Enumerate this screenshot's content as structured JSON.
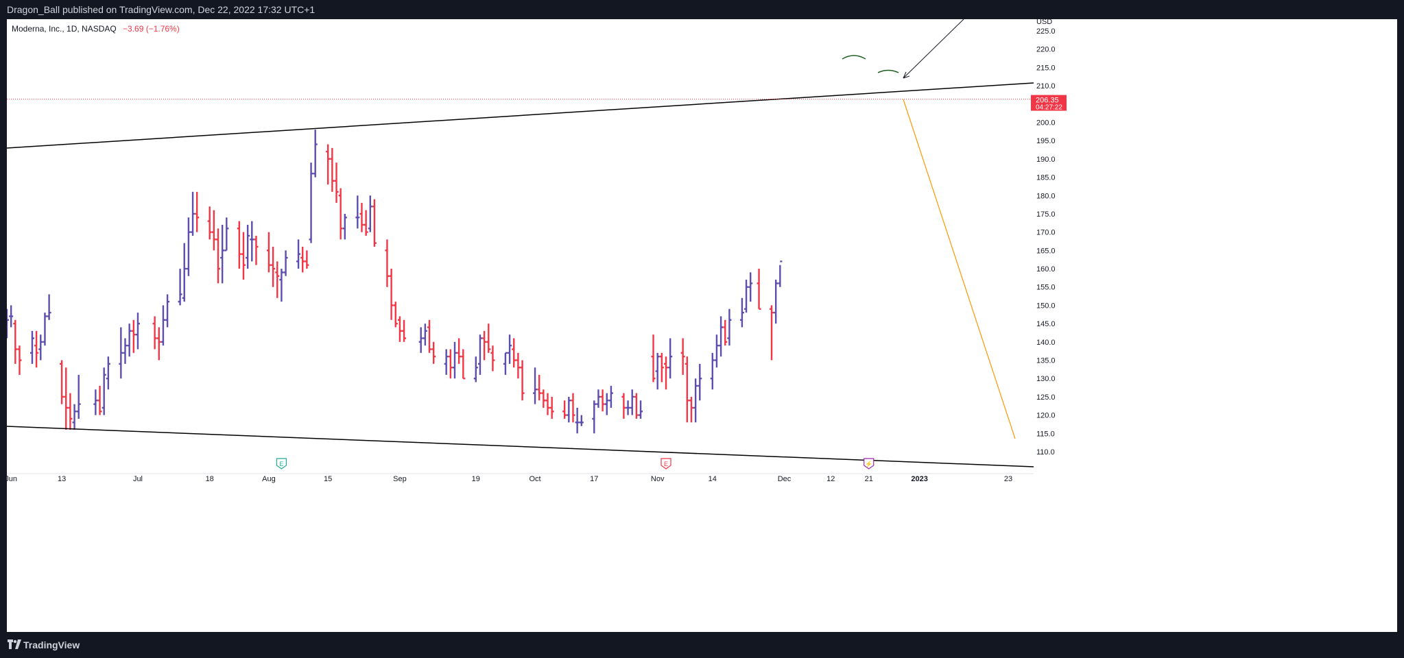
{
  "header": {
    "publish_line": "Dragon_Ball published on TradingView.com, Dec 22, 2022 17:32 UTC+1"
  },
  "legend": {
    "symbol": "Moderna, Inc., 1D, NASDAQ",
    "change": "−3.69 (−1.76%)"
  },
  "footer": {
    "brand": "TradingView"
  },
  "price_axis": {
    "currency": "USD",
    "current_price": "206.35",
    "countdown": "04:27:22"
  },
  "event_markers": [
    {
      "label": "E",
      "kind": "earnings",
      "color": "#22ab94",
      "x": "2022-08-04"
    },
    {
      "label": "E",
      "kind": "earnings",
      "color": "#f23645",
      "x": "2022-11-03"
    },
    {
      "label": "⚡",
      "kind": "dividend",
      "color": "#9c27b0",
      "x": "2022-12-21"
    }
  ],
  "colors": {
    "up": "#5c4db1",
    "down": "#f23645",
    "trendline": "#000000",
    "projection": "#ff9800",
    "price_label_bg": "#f23645"
  },
  "chart_data": {
    "type": "bar",
    "title": "Moderna, Inc., 1D, NASDAQ",
    "ylabel": "USD",
    "ylim": [
      106,
      227
    ],
    "y_ticks": [
      110,
      115,
      120,
      125,
      130,
      135,
      140,
      145,
      150,
      155,
      160,
      165,
      170,
      175,
      180,
      185,
      190,
      195,
      200,
      205,
      210,
      215,
      220,
      225
    ],
    "x_ticks": [
      {
        "label": "Jun",
        "date": "2022-06-01"
      },
      {
        "label": "13",
        "date": "2022-06-13"
      },
      {
        "label": "Jul",
        "date": "2022-07-01"
      },
      {
        "label": "18",
        "date": "2022-07-18"
      },
      {
        "label": "Aug",
        "date": "2022-08-01"
      },
      {
        "label": "15",
        "date": "2022-08-15"
      },
      {
        "label": "Sep",
        "date": "2022-09-01"
      },
      {
        "label": "19",
        "date": "2022-09-19"
      },
      {
        "label": "Oct",
        "date": "2022-10-03"
      },
      {
        "label": "17",
        "date": "2022-10-17"
      },
      {
        "label": "Nov",
        "date": "2022-11-01"
      },
      {
        "label": "14",
        "date": "2022-11-14"
      },
      {
        "label": "Dec",
        "date": "2022-12-01"
      },
      {
        "label": "12",
        "date": "2022-12-12"
      },
      {
        "label": "21",
        "date": "2022-12-21"
      },
      {
        "label": "2023",
        "date": "2023-01-02",
        "bold": true
      },
      {
        "label": "23",
        "date": "2023-01-23"
      }
    ],
    "series": [
      {
        "ohlc": [
          [
            "2022-05-31",
            144,
            149,
            141,
            146
          ],
          [
            "2022-06-01",
            147,
            150,
            144,
            147
          ],
          [
            "2022-06-02",
            145,
            146,
            134,
            138
          ],
          [
            "2022-06-03",
            138,
            139,
            131,
            135
          ],
          [
            "2022-06-06",
            137,
            143,
            134,
            141
          ],
          [
            "2022-06-07",
            139,
            143,
            133,
            137
          ],
          [
            "2022-06-08",
            138,
            142,
            135,
            140
          ],
          [
            "2022-06-09",
            140,
            148,
            139,
            147
          ],
          [
            "2022-06-10",
            147,
            153,
            146,
            148
          ],
          [
            "2022-06-13",
            134,
            135,
            123,
            125
          ],
          [
            "2022-06-14",
            125,
            133,
            116,
            122
          ],
          [
            "2022-06-15",
            122,
            126,
            116,
            119
          ],
          [
            "2022-06-16",
            118,
            123,
            116,
            121
          ],
          [
            "2022-06-17",
            121,
            131,
            119,
            123
          ],
          [
            "2022-06-21",
            123,
            127,
            120,
            124
          ],
          [
            "2022-06-22",
            124,
            128,
            120,
            121
          ],
          [
            "2022-06-23",
            122,
            133,
            120,
            131
          ],
          [
            "2022-06-24",
            130,
            136,
            127,
            134
          ],
          [
            "2022-06-27",
            134,
            144,
            130,
            137
          ],
          [
            "2022-06-28",
            137,
            141,
            134,
            139
          ],
          [
            "2022-06-29",
            139,
            145,
            136,
            143
          ],
          [
            "2022-06-30",
            143,
            146,
            137,
            142
          ],
          [
            "2022-07-01",
            142,
            148,
            138,
            145
          ],
          [
            "2022-07-05",
            145,
            147,
            138,
            141
          ],
          [
            "2022-07-06",
            141,
            144,
            135,
            140
          ],
          [
            "2022-07-07",
            140,
            150,
            139,
            146
          ],
          [
            "2022-07-08",
            146,
            153,
            144,
            151
          ],
          [
            "2022-07-11",
            151,
            160,
            150,
            153
          ],
          [
            "2022-07-12",
            152,
            167,
            151,
            160
          ],
          [
            "2022-07-13",
            160,
            174,
            158,
            170
          ],
          [
            "2022-07-14",
            170,
            181,
            169,
            175
          ],
          [
            "2022-07-15",
            175,
            181,
            170,
            174
          ],
          [
            "2022-07-18",
            173,
            177,
            168,
            170
          ],
          [
            "2022-07-19",
            170,
            176,
            165,
            168
          ],
          [
            "2022-07-20",
            168,
            171,
            156,
            160
          ],
          [
            "2022-07-21",
            163,
            172,
            156,
            165
          ],
          [
            "2022-07-22",
            165,
            174,
            165,
            171
          ],
          [
            "2022-07-25",
            171,
            173,
            160,
            164
          ],
          [
            "2022-07-26",
            164,
            170,
            157,
            161
          ],
          [
            "2022-07-27",
            163,
            172,
            160,
            169
          ],
          [
            "2022-07-28",
            168,
            173,
            162,
            168
          ],
          [
            "2022-07-29",
            168,
            169,
            161,
            166
          ],
          [
            "2022-08-01",
            165,
            170,
            159,
            161
          ],
          [
            "2022-08-02",
            161,
            166,
            155,
            160
          ],
          [
            "2022-08-03",
            159,
            162,
            152,
            158
          ],
          [
            "2022-08-04",
            157,
            160,
            151,
            159
          ],
          [
            "2022-08-05",
            159,
            165,
            158,
            163
          ],
          [
            "2022-08-08",
            162,
            168,
            160,
            164
          ],
          [
            "2022-08-09",
            163,
            166,
            159,
            162
          ],
          [
            "2022-08-10",
            162,
            165,
            160,
            161
          ],
          [
            "2022-08-11",
            168,
            189,
            167,
            186
          ],
          [
            "2022-08-12",
            186,
            198,
            185,
            194
          ],
          [
            "2022-08-15",
            192,
            194,
            183,
            190
          ],
          [
            "2022-08-16",
            190,
            193,
            181,
            184
          ],
          [
            "2022-08-17",
            184,
            189,
            178,
            181
          ],
          [
            "2022-08-18",
            180,
            182,
            168,
            171
          ],
          [
            "2022-08-19",
            171,
            175,
            168,
            174
          ],
          [
            "2022-08-22",
            174,
            180,
            171,
            174
          ],
          [
            "2022-08-23",
            175,
            178,
            170,
            172
          ],
          [
            "2022-08-24",
            172,
            176,
            169,
            170
          ],
          [
            "2022-08-25",
            171,
            180,
            170,
            177
          ],
          [
            "2022-08-26",
            177,
            179,
            166,
            167
          ],
          [
            "2022-08-29",
            165,
            168,
            155,
            158
          ],
          [
            "2022-08-30",
            158,
            160,
            146,
            150
          ],
          [
            "2022-08-31",
            150,
            151,
            144,
            145
          ],
          [
            "2022-09-01",
            146,
            147,
            140,
            143
          ],
          [
            "2022-09-02",
            143,
            146,
            140,
            141
          ],
          [
            "2022-09-06",
            140,
            144,
            137,
            141
          ],
          [
            "2022-09-07",
            141,
            145,
            139,
            143
          ],
          [
            "2022-09-08",
            144,
            146,
            137,
            138
          ],
          [
            "2022-09-09",
            138,
            140,
            134,
            136
          ],
          [
            "2022-09-12",
            134,
            138,
            131,
            136
          ],
          [
            "2022-09-13",
            136,
            138,
            130,
            133
          ],
          [
            "2022-09-14",
            133,
            140,
            130,
            137
          ],
          [
            "2022-09-15",
            137,
            141,
            134,
            136
          ],
          [
            "2022-09-16",
            136,
            138,
            130,
            130
          ],
          [
            "2022-09-19",
            130,
            136,
            129,
            133
          ],
          [
            "2022-09-20",
            134,
            142,
            131,
            141
          ],
          [
            "2022-09-21",
            141,
            143,
            135,
            140
          ],
          [
            "2022-09-22",
            140,
            145,
            137,
            138
          ],
          [
            "2022-09-23",
            137,
            139,
            132,
            135
          ],
          [
            "2022-09-26",
            134,
            137,
            131,
            137
          ],
          [
            "2022-09-27",
            137,
            142,
            134,
            139
          ],
          [
            "2022-09-28",
            138,
            141,
            133,
            135
          ],
          [
            "2022-09-29",
            135,
            137,
            130,
            133
          ],
          [
            "2022-09-30",
            133,
            135,
            124,
            126
          ],
          [
            "2022-10-03",
            126,
            133,
            123,
            127
          ],
          [
            "2022-10-04",
            127,
            131,
            124,
            126
          ],
          [
            "2022-10-05",
            126,
            127,
            122,
            124
          ],
          [
            "2022-10-06",
            124,
            126,
            120,
            122
          ],
          [
            "2022-10-07",
            122,
            125,
            119,
            121
          ],
          [
            "2022-10-10",
            121,
            124,
            119,
            120
          ],
          [
            "2022-10-11",
            120,
            125,
            118,
            124
          ],
          [
            "2022-10-12",
            124,
            126,
            118,
            120
          ],
          [
            "2022-10-13",
            118,
            122,
            115,
            118
          ],
          [
            "2022-10-14",
            118,
            120,
            117,
            118
          ],
          [
            "2022-10-17",
            119,
            124,
            115,
            123
          ],
          [
            "2022-10-18",
            123,
            127,
            122,
            125
          ],
          [
            "2022-10-19",
            125,
            127,
            121,
            123
          ],
          [
            "2022-10-20",
            123,
            126,
            120,
            124
          ],
          [
            "2022-10-21",
            124,
            128,
            122,
            126
          ],
          [
            "2022-10-24",
            125,
            126,
            119,
            122
          ],
          [
            "2022-10-25",
            122,
            124,
            120,
            122
          ],
          [
            "2022-10-26",
            122,
            127,
            120,
            125
          ],
          [
            "2022-10-27",
            125,
            126,
            119,
            120
          ],
          [
            "2022-10-28",
            120,
            124,
            119,
            121
          ],
          [
            "2022-10-31",
            136,
            142,
            129,
            130
          ],
          [
            "2022-11-01",
            132,
            137,
            127,
            136
          ],
          [
            "2022-11-02",
            136,
            137,
            129,
            133
          ],
          [
            "2022-11-03",
            134,
            136,
            127,
            133
          ],
          [
            "2022-11-04",
            133,
            141,
            130,
            136
          ],
          [
            "2022-11-07",
            137,
            141,
            131,
            136
          ],
          [
            "2022-11-08",
            134,
            136,
            118,
            124
          ],
          [
            "2022-11-09",
            124,
            125,
            118,
            122
          ],
          [
            "2022-11-10",
            122,
            130,
            118,
            128
          ],
          [
            "2022-11-11",
            128,
            134,
            124,
            130
          ],
          [
            "2022-11-14",
            130,
            137,
            127,
            135
          ],
          [
            "2022-11-15",
            135,
            142,
            133,
            139
          ],
          [
            "2022-11-16",
            139,
            147,
            136,
            144
          ],
          [
            "2022-11-17",
            144,
            146,
            139,
            140
          ],
          [
            "2022-11-18",
            141,
            149,
            139,
            146
          ],
          [
            "2022-11-21",
            146,
            152,
            144,
            148
          ],
          [
            "2022-11-22",
            149,
            157,
            148,
            155
          ],
          [
            "2022-11-23",
            155,
            159,
            151,
            156
          ],
          [
            "2022-11-25",
            156,
            160,
            149,
            149
          ],
          [
            "2022-11-28",
            149,
            150,
            135,
            148
          ],
          [
            "2022-11-29",
            148,
            157,
            145,
            156
          ],
          [
            "2022-11-30",
            156,
            161,
            155,
            162
          ]
        ]
      }
    ]
  }
}
